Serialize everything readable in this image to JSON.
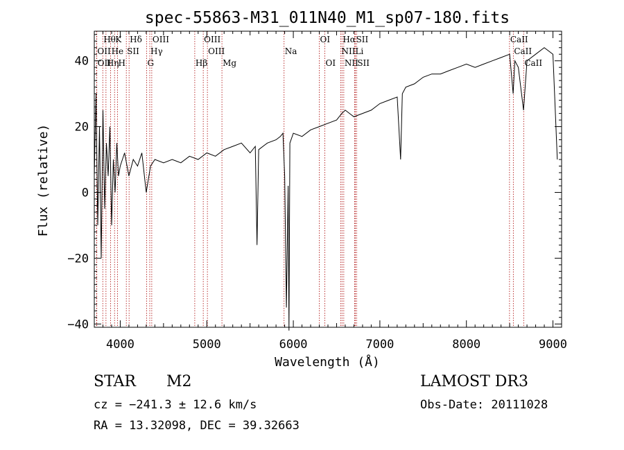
{
  "chart_data": {
    "type": "line",
    "title": "spec-55863-M31_011N40_M1_sp07-180.fits",
    "xlabel": "Wavelength (Å)",
    "ylabel": "Flux (relative)",
    "xlim": [
      3700,
      9100
    ],
    "ylim": [
      -41,
      49
    ],
    "xticks": [
      4000,
      5000,
      6000,
      7000,
      8000,
      9000
    ],
    "yticks": [
      -40,
      -20,
      0,
      20,
      40
    ],
    "series": [
      {
        "name": "flux",
        "x": [
          3700,
          3720,
          3740,
          3760,
          3780,
          3800,
          3820,
          3840,
          3860,
          3880,
          3900,
          3920,
          3940,
          3960,
          3980,
          4000,
          4050,
          4100,
          4150,
          4200,
          4250,
          4300,
          4350,
          4400,
          4500,
          4600,
          4700,
          4800,
          4900,
          5000,
          5100,
          5200,
          5300,
          5400,
          5500,
          5560,
          5580,
          5600,
          5700,
          5800,
          5850,
          5880,
          5900,
          5920,
          5940,
          5950,
          5960,
          6000,
          6100,
          6200,
          6300,
          6400,
          6500,
          6560,
          6600,
          6700,
          6800,
          6900,
          7000,
          7100,
          7200,
          7240,
          7260,
          7300,
          7400,
          7500,
          7600,
          7700,
          7800,
          7900,
          8000,
          8100,
          8200,
          8300,
          8400,
          8500,
          8540,
          8560,
          8600,
          8660,
          8700,
          8800,
          8900,
          9000,
          9050
        ],
        "y": [
          5,
          30,
          -10,
          20,
          -20,
          25,
          -5,
          15,
          5,
          20,
          -10,
          10,
          0,
          15,
          5,
          8,
          12,
          5,
          10,
          8,
          12,
          0,
          8,
          10,
          9,
          10,
          9,
          11,
          10,
          12,
          11,
          13,
          14,
          15,
          12,
          14,
          -16,
          13,
          15,
          16,
          17,
          18,
          5,
          -35,
          2,
          -42,
          15,
          18,
          17,
          19,
          20,
          21,
          22,
          24,
          25,
          23,
          24,
          25,
          27,
          28,
          29,
          10,
          30,
          32,
          33,
          35,
          36,
          36,
          37,
          38,
          39,
          38,
          39,
          40,
          41,
          42,
          30,
          40,
          38,
          25,
          40,
          42,
          44,
          42,
          10
        ]
      }
    ],
    "spectral_lines": [
      {
        "label": "Hθ",
        "x": 3798
      },
      {
        "label": "K",
        "x": 3934
      },
      {
        "label": "Hδ",
        "x": 4102
      },
      {
        "label": "OIII",
        "x": 4364
      },
      {
        "label": "OIII",
        "x": 4959
      },
      {
        "label": "OI",
        "x": 6300
      },
      {
        "label": "Hα",
        "x": 6563
      },
      {
        "label": "SII",
        "x": 6717
      },
      {
        "label": "CaII",
        "x": 8498
      },
      {
        "label": "OII",
        "x": 3727
      },
      {
        "label": "He",
        "x": 3889
      },
      {
        "label": "SII",
        "x": 4070
      },
      {
        "label": "Hγ",
        "x": 4341
      },
      {
        "label": "OIII",
        "x": 5007
      },
      {
        "label": "Na",
        "x": 5893
      },
      {
        "label": "NII",
        "x": 6548
      },
      {
        "label": "Li",
        "x": 6708
      },
      {
        "label": "CaII",
        "x": 8542
      },
      {
        "label": "OII",
        "x": 3729
      },
      {
        "label": "Hη",
        "x": 3835
      },
      {
        "label": "H",
        "x": 3968
      },
      {
        "label": "G",
        "x": 4305
      },
      {
        "label": "Hβ",
        "x": 4861
      },
      {
        "label": "Mg",
        "x": 5175
      },
      {
        "label": "OI",
        "x": 6364
      },
      {
        "label": "NII",
        "x": 6583
      },
      {
        "label": "SII",
        "x": 6731
      },
      {
        "label": "CaII",
        "x": 8662
      }
    ]
  },
  "info": {
    "object_class": "STAR",
    "subclass": "M2",
    "survey": "LAMOST DR3",
    "cz": "cz = −241.3 ± 12.6 km/s",
    "obs_date": "Obs-Date: 20111028",
    "coords": "RA =  13.32098, DEC =  39.32663"
  },
  "colors": {
    "line": "#000000",
    "marker": "#aa0000",
    "axis": "#000000"
  }
}
